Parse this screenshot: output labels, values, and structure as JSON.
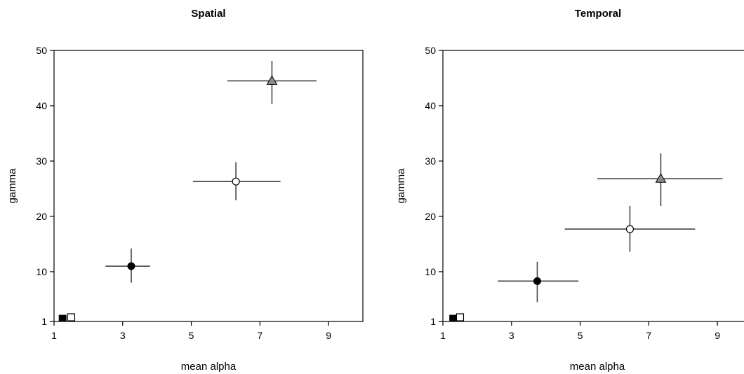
{
  "chart_data": [
    {
      "type": "scatter",
      "title": "Spatial",
      "xlabel": "mean alpha",
      "ylabel": "gamma",
      "xlim": [
        1,
        10
      ],
      "ylim": [
        1,
        50
      ],
      "xticks": [
        1,
        3,
        5,
        7,
        9
      ],
      "yticks": [
        1,
        10,
        20,
        30,
        40,
        50
      ],
      "grid": false,
      "points": [
        {
          "marker": "square-filled",
          "x": 1.25,
          "y": 1
        },
        {
          "marker": "square-open",
          "x": 1.5,
          "y": 1
        },
        {
          "marker": "circle-filled",
          "x": 3.25,
          "y": 11,
          "xerr": [
            2.5,
            3.8
          ],
          "yerr": [
            8,
            14.2
          ]
        },
        {
          "marker": "circle-open",
          "x": 6.3,
          "y": 26.3,
          "xerr": [
            5.05,
            7.6
          ],
          "yerr": [
            22.9,
            29.8
          ]
        },
        {
          "marker": "triangle-gray",
          "x": 7.35,
          "y": 44.5,
          "xerr": [
            6.05,
            8.65
          ],
          "yerr": [
            40.3,
            48.1
          ]
        }
      ]
    },
    {
      "type": "scatter",
      "title": "Temporal",
      "xlabel": "mean alpha",
      "ylabel": "gamma",
      "xlim": [
        1,
        10
      ],
      "ylim": [
        1,
        50
      ],
      "xticks": [
        1,
        3,
        5,
        7,
        9
      ],
      "yticks": [
        1,
        10,
        20,
        30,
        40,
        50
      ],
      "grid": false,
      "points": [
        {
          "marker": "square-filled",
          "x": 1.3,
          "y": 1
        },
        {
          "marker": "square-open",
          "x": 1.5,
          "y": 1
        },
        {
          "marker": "circle-filled",
          "x": 3.75,
          "y": 8.3,
          "xerr": [
            2.6,
            4.95
          ],
          "yerr": [
            4.5,
            11.8
          ]
        },
        {
          "marker": "circle-open",
          "x": 6.45,
          "y": 17.7,
          "xerr": [
            4.55,
            8.35
          ],
          "yerr": [
            13.6,
            21.9
          ]
        },
        {
          "marker": "triangle-gray",
          "x": 7.35,
          "y": 26.8,
          "xerr": [
            5.5,
            9.15
          ],
          "yerr": [
            21.9,
            31.4
          ]
        }
      ]
    }
  ]
}
